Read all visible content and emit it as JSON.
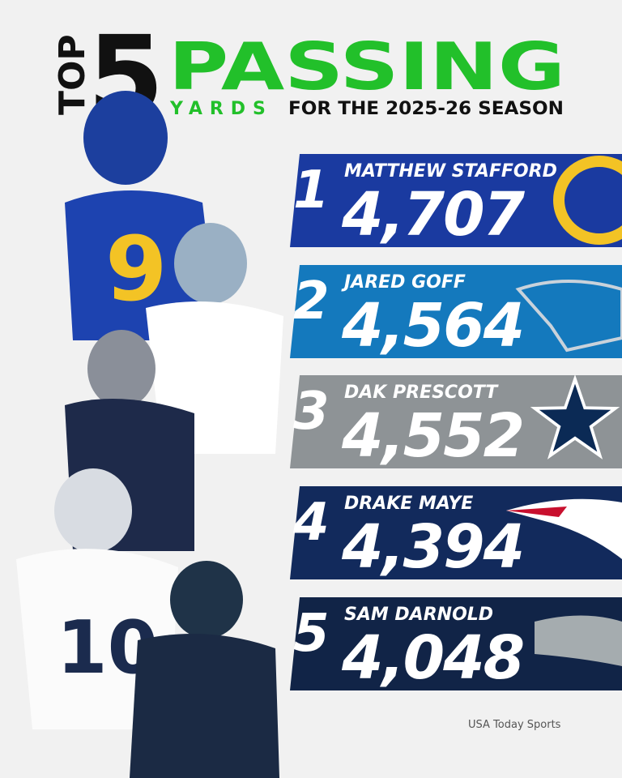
{
  "header": {
    "top": "TOP",
    "number": "5",
    "title": "PASSING",
    "subtitle_accent": "YARDS",
    "subtitle": "FOR THE 2025-26 SEASON"
  },
  "rows": [
    {
      "rank": "1",
      "name": "MATTHEW STAFFORD",
      "yards": "4,707"
    },
    {
      "rank": "2",
      "name": "JARED GOFF",
      "yards": "4,564"
    },
    {
      "rank": "3",
      "name": "DAK PRESCOTT",
      "yards": "4,552"
    },
    {
      "rank": "4",
      "name": "DRAKE MAYE",
      "yards": "4,394"
    },
    {
      "rank": "5",
      "name": "SAM DARNOLD",
      "yards": "4,048"
    }
  ],
  "credit": "USA Today Sports"
}
